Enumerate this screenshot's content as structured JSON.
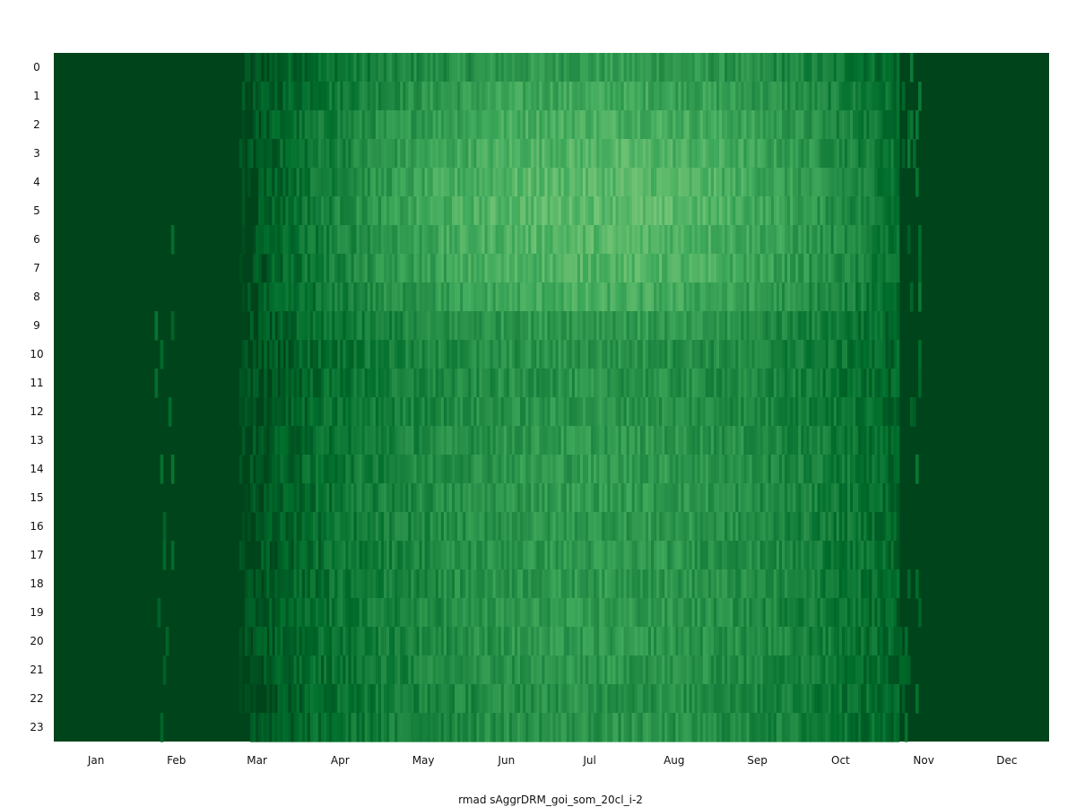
{
  "chart_data": {
    "type": "heatmap",
    "title": "",
    "xlabel": "rmad sAggrDRM_goi_som_20cl_i-2",
    "ylabel": "",
    "x_tick_labels": [
      "Jan",
      "Feb",
      "Mar",
      "Apr",
      "May",
      "Jun",
      "Jul",
      "Aug",
      "Sep",
      "Oct",
      "Nov",
      "Dec"
    ],
    "y_tick_labels": [
      "0",
      "1",
      "2",
      "3",
      "4",
      "5",
      "6",
      "7",
      "8",
      "9",
      "10",
      "11",
      "12",
      "13",
      "14",
      "15",
      "16",
      "17",
      "18",
      "19",
      "20",
      "21",
      "22",
      "23"
    ],
    "days_per_year": 365,
    "colormap": [
      "#00441b",
      "#006d2c",
      "#238b45",
      "#41ab5d",
      "#74c476"
    ],
    "zero_color": "#00441b",
    "x_tick_day_of_year": [
      1,
      32,
      60,
      91,
      121,
      152,
      182,
      213,
      244,
      274,
      305,
      335
    ],
    "active_season_days": [
      46,
      310
    ],
    "intensity_scale": [
      0,
      1
    ],
    "hour_intensity_peak": [
      0.62,
      0.72,
      0.8,
      0.84,
      0.88,
      0.9,
      0.86,
      0.84,
      0.76,
      0.62,
      0.56,
      0.55,
      0.57,
      0.6,
      0.62,
      0.62,
      0.6,
      0.6,
      0.6,
      0.6,
      0.6,
      0.58,
      0.55,
      0.56
    ],
    "grid": false,
    "legend": false
  }
}
